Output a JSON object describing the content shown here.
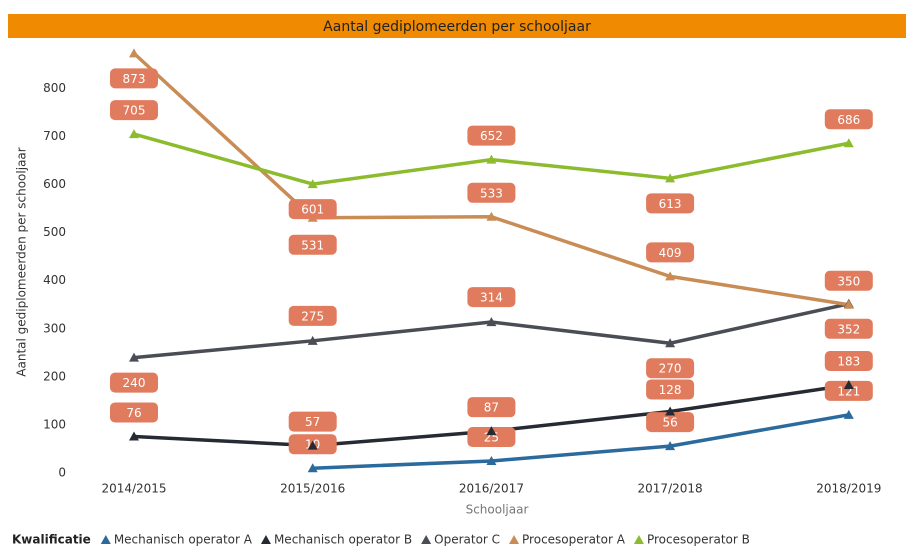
{
  "chart_data": {
    "type": "line",
    "title": "Aantal gediplomeerden per schooljaar",
    "xlabel": "Schooljaar",
    "ylabel": "Aantal gediplomeerden per schooljaar",
    "legend_title": "Kwalificatie",
    "categories": [
      "2014/2015",
      "2015/2016",
      "2016/2017",
      "2017/2018",
      "2018/2019"
    ],
    "series": [
      {
        "name": "Mechanisch operator A",
        "color": "#2a6a9c",
        "values": [
          null,
          10,
          25,
          56,
          121
        ]
      },
      {
        "name": "Mechanisch operator B",
        "color": "#262a33",
        "values": [
          76,
          57,
          87,
          128,
          183
        ]
      },
      {
        "name": "Operator C",
        "color": "#4a4d55",
        "values": [
          240,
          275,
          314,
          270,
          352
        ]
      },
      {
        "name": "Procesoperator A",
        "color": "#c98c55",
        "values": [
          873,
          531,
          533,
          409,
          350
        ]
      },
      {
        "name": "Procesoperator B",
        "color": "#8cbb2e",
        "values": [
          705,
          601,
          652,
          613,
          686
        ]
      }
    ],
    "ylim": [
      0,
      880
    ],
    "yticks": [
      0,
      100,
      200,
      300,
      400,
      500,
      600,
      700,
      800
    ],
    "legend": "bottom",
    "grid": false
  }
}
